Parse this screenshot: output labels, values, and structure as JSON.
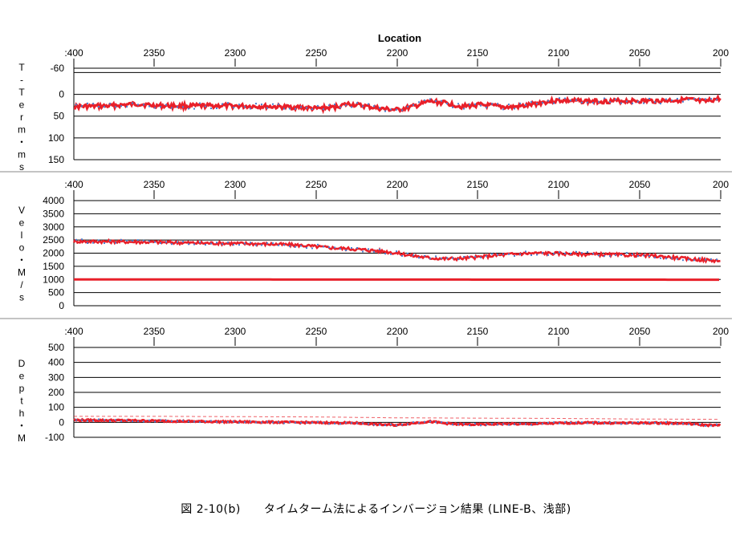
{
  "caption": "図 2-10(b)　　タイムターム法によるインバージョン結果 (LINE-B、浅部)",
  "colors": {
    "series_main": "#e8202a",
    "series_points": "#4a7ecf",
    "grid": "#000000"
  },
  "chart_data": [
    {
      "type": "scatter",
      "title": "",
      "xlabel": "Location",
      "ylabel": "T-Term・ms",
      "xlim": [
        2400,
        2000
      ],
      "x_tick_labels": [
        ":400",
        "2350",
        "2300",
        "2250",
        "2200",
        "2150",
        "2100",
        "2050",
        "200"
      ],
      "ylim": [
        150,
        -60
      ],
      "y_ticks": [
        -60,
        -50,
        0,
        50,
        100,
        150
      ],
      "y_tick_labels": [
        "-60",
        "",
        "0",
        "50",
        "100",
        "150"
      ],
      "series": [
        {
          "x": [
            2400,
            2380,
            2360,
            2350,
            2330,
            2310,
            2300,
            2280,
            2260,
            2250,
            2240,
            2230,
            2220,
            2210,
            2200,
            2190,
            2180,
            2170,
            2160,
            2150,
            2140,
            2130,
            2120,
            2110,
            2100,
            2080,
            2060,
            2040,
            2020,
            2010,
            2000
          ],
          "values": [
            28,
            27,
            22,
            26,
            27,
            26,
            27,
            28,
            30,
            33,
            30,
            22,
            27,
            33,
            36,
            28,
            16,
            20,
            28,
            24,
            27,
            30,
            26,
            18,
            14,
            16,
            15,
            15,
            12,
            17,
            9
          ]
        }
      ]
    },
    {
      "type": "scatter",
      "title": "",
      "xlabel": "",
      "ylabel": "Velo・M/s",
      "xlim": [
        2400,
        2000
      ],
      "x_tick_labels": [
        ":400",
        "2350",
        "2300",
        "2250",
        "2200",
        "2150",
        "2100",
        "2050",
        "200"
      ],
      "ylim": [
        0,
        4000
      ],
      "y_ticks": [
        0,
        500,
        1000,
        1500,
        2000,
        2500,
        3000,
        3500,
        4000
      ],
      "y_tick_labels": [
        "0",
        "500",
        "1000",
        "1500",
        "2000",
        "2500",
        "3000",
        "3500",
        "4000"
      ],
      "series": [
        {
          "x": [
            2400,
            2375,
            2350,
            2325,
            2300,
            2275,
            2260,
            2250,
            2240,
            2225,
            2210,
            2200,
            2190,
            2180,
            2170,
            2160,
            2150,
            2140,
            2130,
            2120,
            2110,
            2100,
            2090,
            2075,
            2060,
            2050,
            2040,
            2030,
            2020,
            2010,
            2000
          ],
          "values": [
            2450,
            2440,
            2420,
            2390,
            2370,
            2340,
            2300,
            2250,
            2200,
            2150,
            2080,
            2000,
            1900,
            1820,
            1790,
            1800,
            1850,
            1910,
            1960,
            1990,
            2000,
            1990,
            1970,
            1950,
            1930,
            1920,
            1890,
            1840,
            1780,
            1740,
            1710
          ]
        },
        {
          "x": [
            2400,
            2000
          ],
          "values": [
            1000,
            990
          ]
        }
      ]
    },
    {
      "type": "scatter",
      "title": "",
      "xlabel": "",
      "ylabel": "Depth・M",
      "xlim": [
        2400,
        2000
      ],
      "x_tick_labels": [
        ":400",
        "2350",
        "2300",
        "2250",
        "2200",
        "2150",
        "2100",
        "2050",
        "200"
      ],
      "ylim": [
        -100,
        500
      ],
      "y_ticks": [
        -100,
        0,
        100,
        200,
        300,
        400,
        500
      ],
      "y_tick_labels": [
        "-100",
        "0",
        "100",
        "200",
        "300",
        "400",
        "500"
      ],
      "series": [
        {
          "x": [
            2400,
            2375,
            2350,
            2325,
            2300,
            2275,
            2250,
            2225,
            2210,
            2200,
            2190,
            2180,
            2165,
            2150,
            2135,
            2120,
            2100,
            2080,
            2060,
            2040,
            2020,
            2010,
            2000
          ],
          "values": [
            15,
            13,
            10,
            6,
            3,
            1,
            -2,
            -5,
            -15,
            -18,
            -5,
            5,
            -12,
            -15,
            -10,
            -12,
            -5,
            -3,
            -5,
            -4,
            -8,
            -18,
            -20
          ]
        },
        {
          "x": [
            2400,
            2350,
            2300,
            2250,
            2200,
            2150,
            2100,
            2050,
            2000
          ],
          "values": [
            40,
            40,
            38,
            36,
            30,
            28,
            26,
            22,
            20
          ]
        }
      ]
    }
  ]
}
